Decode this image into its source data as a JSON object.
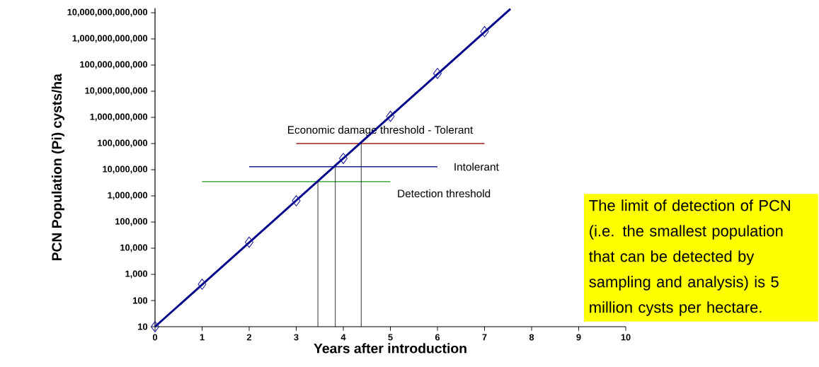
{
  "chart_data": {
    "type": "scatter",
    "xlabel": "Years after introduction",
    "ylabel": "PCN Population (Pi) cysts/ha",
    "log": "y",
    "grid": false,
    "xlim": [
      0,
      10
    ],
    "xticks": [
      0,
      1,
      2,
      3,
      4,
      5,
      6,
      7,
      8,
      9,
      10
    ],
    "ylim": [
      10,
      15000000000000
    ],
    "yticks": [
      {
        "value": 10,
        "label": "10"
      },
      {
        "value": 100,
        "label": "100"
      },
      {
        "value": 1000,
        "label": "1,000"
      },
      {
        "value": 10000,
        "label": "10,000"
      },
      {
        "value": 100000,
        "label": "100,000"
      },
      {
        "value": 1000000,
        "label": "1,000,000"
      },
      {
        "value": 10000000,
        "label": "10,000,000"
      },
      {
        "value": 100000000,
        "label": "100,000,000"
      },
      {
        "value": 1000000000,
        "label": "1,000,000,000"
      },
      {
        "value": 10000000000,
        "label": "10,000,000,000"
      },
      {
        "value": 100000000000,
        "label": "100,000,000,000"
      },
      {
        "value": 1000000000000,
        "label": "1,000,000,000,000"
      },
      {
        "value": 10000000000000,
        "label": "10,000,000,000,000"
      }
    ],
    "series": [
      {
        "name": "Economic damage threshold - Tolerant",
        "type": "line",
        "color": "#a02020",
        "x": [
          3,
          7
        ],
        "values": [
          100000000,
          100000000
        ]
      },
      {
        "name": "Intolerant",
        "type": "line",
        "color": "#20209a",
        "x": [
          2,
          6
        ],
        "values": [
          13000000,
          13000000
        ]
      },
      {
        "name": "Detection threshold",
        "type": "line",
        "color": "#1a9a1a",
        "x": [
          1,
          5
        ],
        "values": [
          3500000,
          3500000
        ]
      },
      {
        "type": "line",
        "color": "#000000",
        "x": [
          3.46,
          3.46
        ],
        "values": [
          10,
          3500000
        ]
      },
      {
        "type": "line",
        "color": "#000000",
        "x": [
          3.83,
          3.83
        ],
        "values": [
          10,
          13000000
        ]
      },
      {
        "type": "line",
        "color": "#000000",
        "x": [
          4.38,
          4.38
        ],
        "values": [
          10,
          100000000
        ]
      },
      {
        "type": "line",
        "color": "#00008b",
        "x": [
          0,
          7.55
        ],
        "values": [
          10,
          14000000000000
        ]
      },
      {
        "marker": "diamond",
        "color": "#1a1aa0",
        "x": [
          0,
          1,
          2,
          3,
          4,
          5,
          6,
          7
        ],
        "values": [
          10,
          420,
          17000,
          650000,
          27000000,
          1100000000,
          48000000000,
          1900000000000
        ]
      }
    ],
    "annotations": [
      "The limit of detection of PCN (i.e. the smallest population that can be detected by sampling and analysis) is 5 million cysts per hectare."
    ]
  }
}
